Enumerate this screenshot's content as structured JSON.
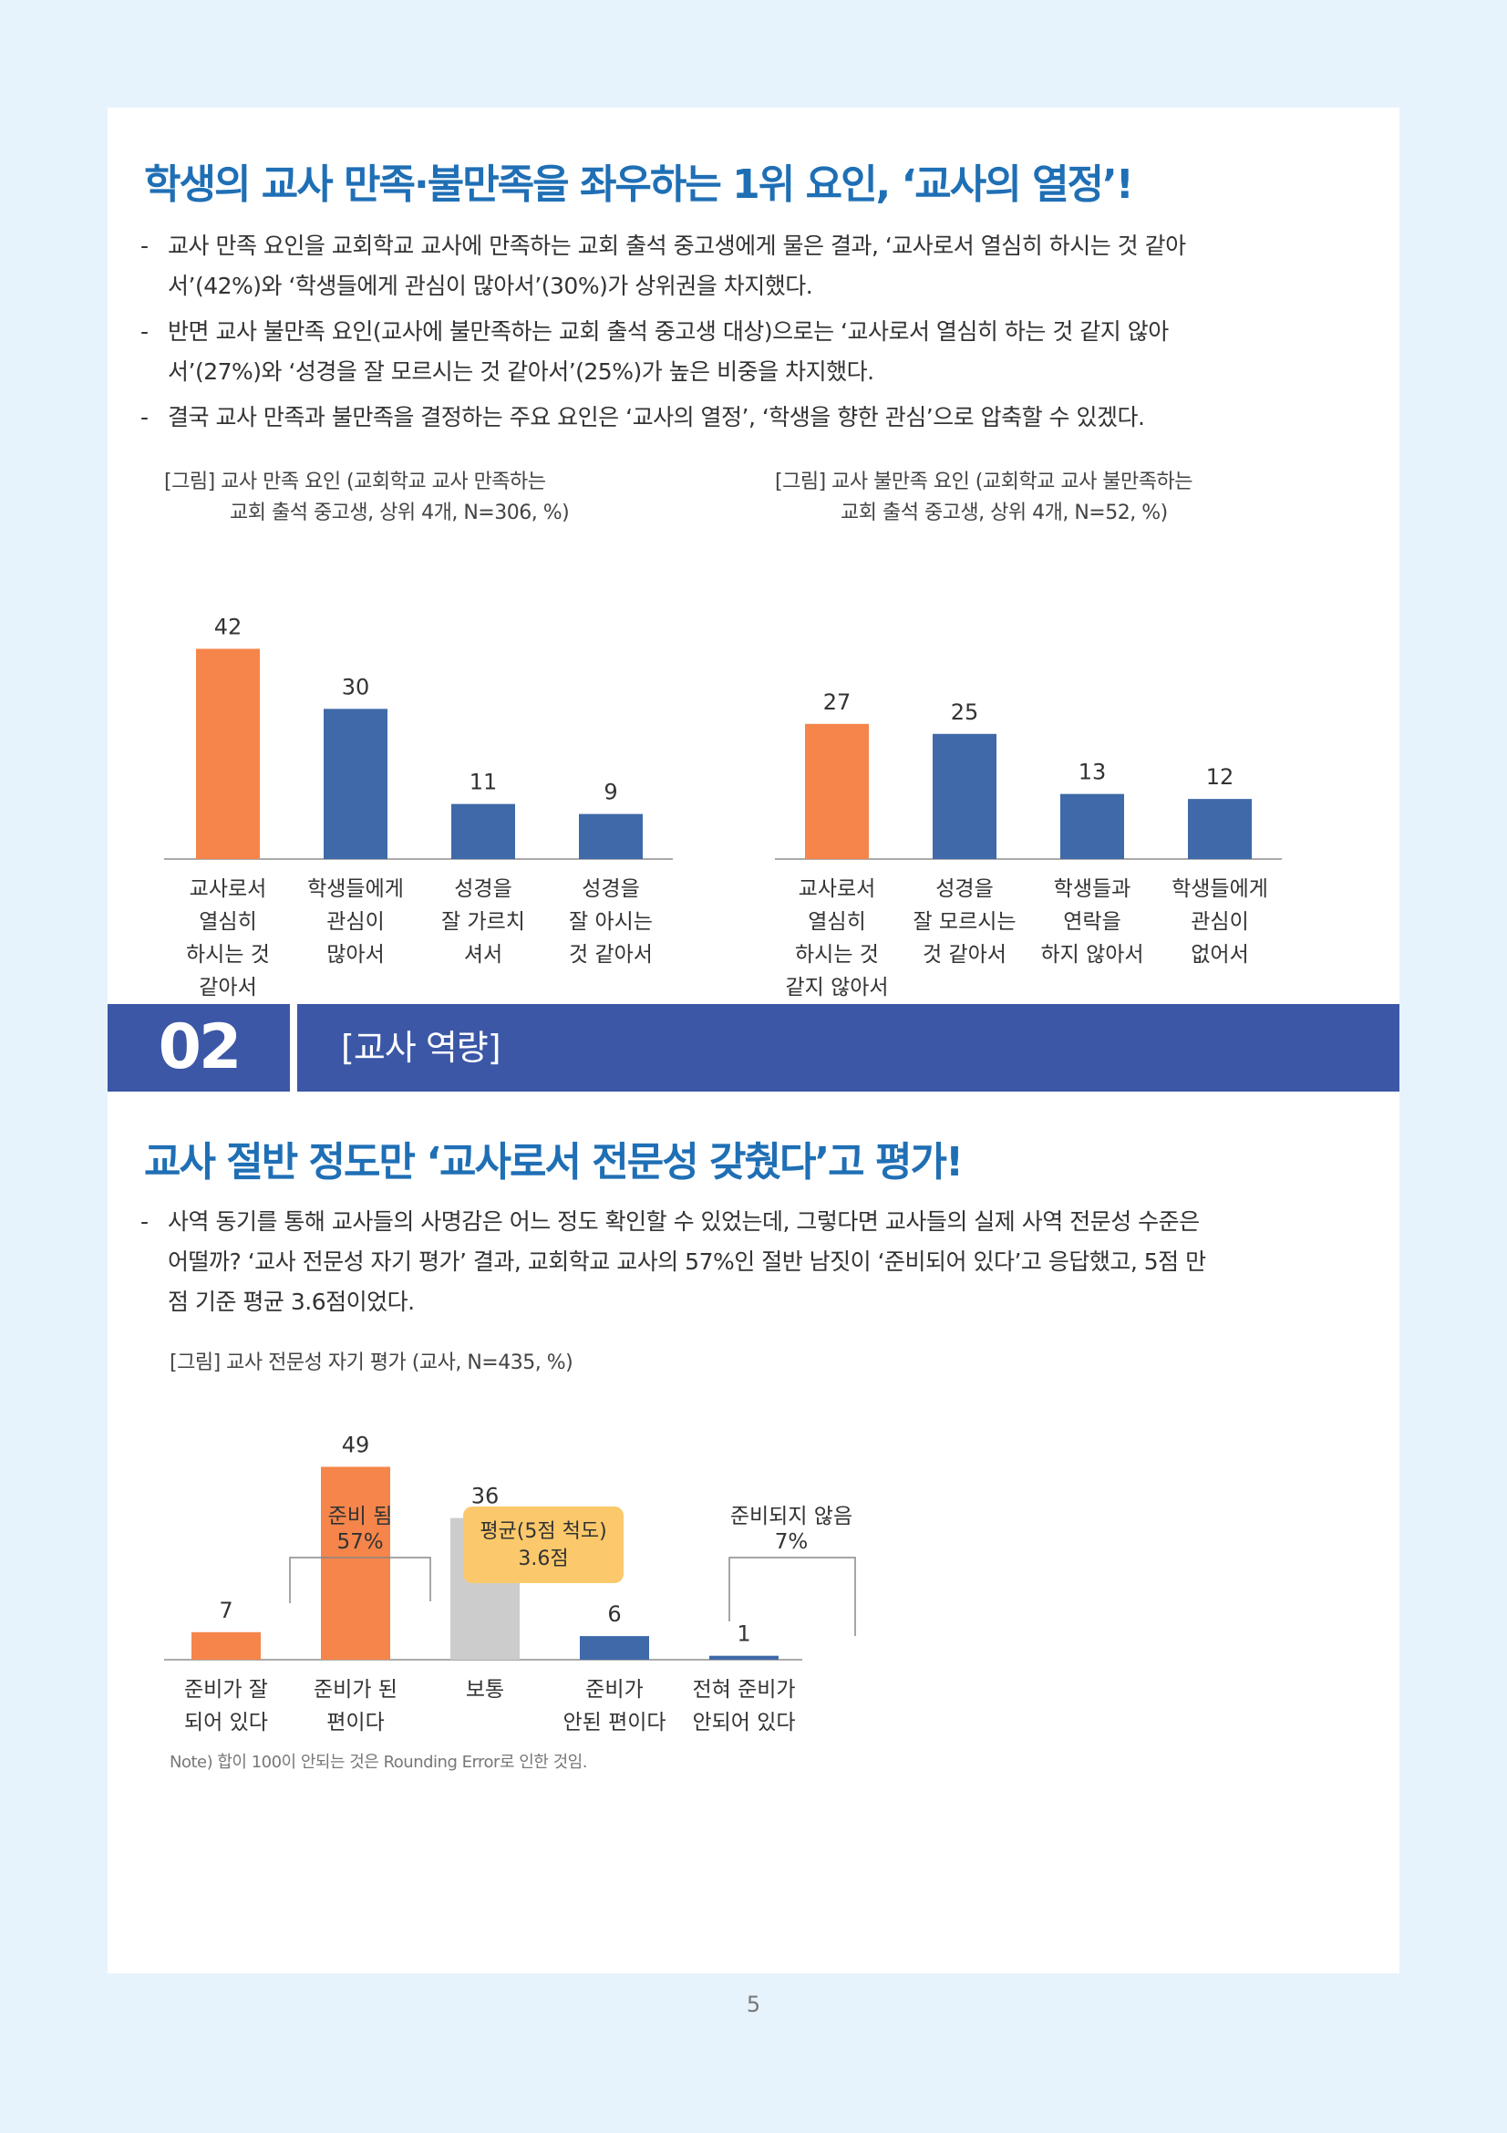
{
  "section1": {
    "heading": "학생의 교사 만족·불만족을 좌우하는 1위 요인, ‘교사의 열정’!",
    "bullets": [
      [
        "교사 만족 요인을 교회학교 교사에 만족하는 교회 출석 중고생에게 물은 결과, ‘교사로서 열심히 하시는 것 같아",
        "서’(42%)와 ‘학생들에게 관심이 많아서’(30%)가 상위권을 차지했다."
      ],
      [
        "반면 교사 불만족 요인(교사에 불만족하는 교회 출석 중고생 대상)으로는 ‘교사로서 열심히 하는 것 같지 않아",
        "서’(27%)와 ‘성경을 잘 모르시는 것 같아서’(25%)가 높은 비중을 차지했다."
      ],
      [
        "결국 교사 만족과 불만족을 결정하는 주요 요인은 ‘교사의 열정’, ‘학생을 향한 관심’으로 압축할 수 있겠다."
      ]
    ],
    "bullet_dash": "-"
  },
  "chart_data": [
    {
      "type": "bar",
      "caption_line1": "[그림] 교사 만족 요인 (교회학교 교사 만족하는",
      "caption_line2": "교회 출석 중고생, 상위 4개, N=306, %)",
      "categories": [
        [
          "교사로서",
          "열심히",
          "하시는 것",
          "같아서"
        ],
        [
          "학생들에게",
          "관심이",
          "많아서"
        ],
        [
          "성경을",
          "잘 가르치",
          "셔서"
        ],
        [
          "성경을",
          "잘 아시는",
          "것 같아서"
        ]
      ],
      "values": [
        42,
        30,
        11,
        9
      ],
      "colors": [
        "#f5854a",
        "#3f69a8",
        "#3f69a8",
        "#3f69a8"
      ],
      "ylim": [
        0,
        45
      ]
    },
    {
      "type": "bar",
      "caption_line1": "[그림] 교사 불만족 요인 (교회학교 교사 불만족하는",
      "caption_line2": "교회 출석 중고생, 상위 4개, N=52, %)",
      "categories": [
        [
          "교사로서",
          "열심히",
          "하시는 것",
          "같지 않아서"
        ],
        [
          "성경을",
          "잘 모르시는",
          "것 같아서"
        ],
        [
          "학생들과",
          "연락을",
          "하지 않아서"
        ],
        [
          "학생들에게",
          "관심이",
          "없어서"
        ]
      ],
      "values": [
        27,
        25,
        13,
        12
      ],
      "colors": [
        "#f5854a",
        "#3f69a8",
        "#3f69a8",
        "#3f69a8"
      ],
      "ylim": [
        0,
        45
      ]
    },
    {
      "type": "bar",
      "caption_line1": "[그림] 교사 전문성 자기 평가 (교사, N=435, %)",
      "categories": [
        [
          "준비가 잘",
          "되어 있다"
        ],
        [
          "준비가 된",
          "편이다"
        ],
        [
          "보통"
        ],
        [
          "준비가",
          "안된 편이다"
        ],
        [
          "전혀 준비가",
          "안되어 있다"
        ]
      ],
      "values": [
        7,
        49,
        36,
        6,
        1
      ],
      "colors": [
        "#f5854a",
        "#f5854a",
        "#cccccc",
        "#3f69a8",
        "#3f69a8"
      ],
      "ylim": [
        0,
        60
      ],
      "annotations": {
        "ready_label": "준비 됨",
        "ready_value": "57%",
        "not_ready_label": "준비되지 않음",
        "not_ready_value": "7%",
        "mean_label": "평균(5점 척도)",
        "mean_value": "3.6점"
      },
      "note": "Note) 합이 100이 안되는 것은 Rounding Error로 인한 것임."
    }
  ],
  "section2": {
    "number": "02",
    "title": "[교사 역량]",
    "heading": "교사 절반 정도만 ‘교사로서 전문성 갖췄다’고 평가!",
    "bullets": [
      [
        "사역 동기를 통해 교사들의 사명감은 어느 정도 확인할 수 있었는데, 그렇다면 교사들의 실제 사역 전문성 수준은",
        "어떨까? ‘교사 전문성 자기 평가’ 결과, 교회학교 교사의 57%인 절반 남짓이 ‘준비되어 있다’고 응답했고, 5점 만",
        "점 기준 평균 3.6점이었다."
      ]
    ]
  },
  "page_number": "5",
  "colors": {
    "heading_blue": "#1f6fb5",
    "section_bar": "#3b57a6",
    "orange": "#f5854a",
    "blue": "#3f69a8",
    "gray": "#cccccc",
    "mean_box": "#fbc96b",
    "page_bg": "#e7f3fc"
  }
}
